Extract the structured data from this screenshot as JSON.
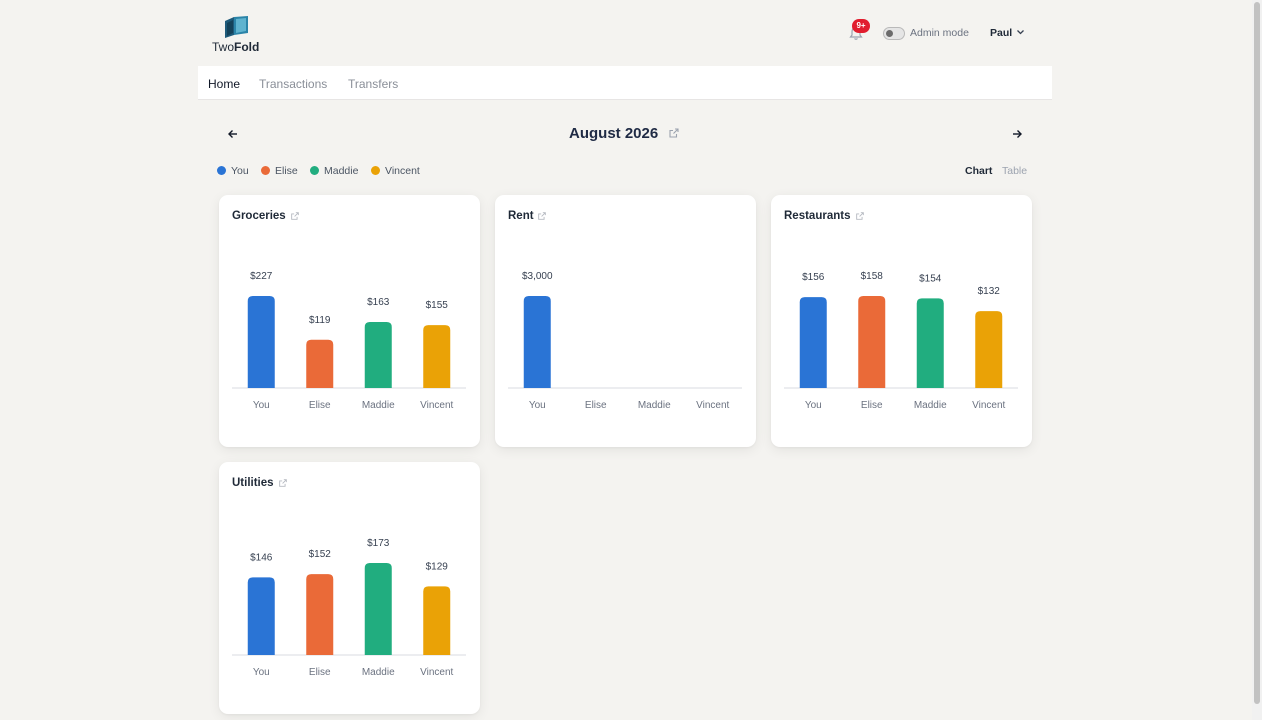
{
  "brand": {
    "name_prefix": "Two",
    "name_suffix": "Fold"
  },
  "header": {
    "notification_badge": "9+",
    "admin_mode_label": "Admin mode",
    "admin_mode_on": false,
    "user_name": "Paul"
  },
  "nav": {
    "tabs": [
      "Home",
      "Transactions",
      "Transfers"
    ],
    "active": "Home"
  },
  "period": {
    "label": "August 2026"
  },
  "legend": [
    {
      "name": "You",
      "color": "#2a74d5"
    },
    {
      "name": "Elise",
      "color": "#ea6a38"
    },
    {
      "name": "Maddie",
      "color": "#21ad7f"
    },
    {
      "name": "Vincent",
      "color": "#eaa206"
    }
  ],
  "view": {
    "options": [
      "Chart",
      "Table"
    ],
    "active": "Chart"
  },
  "chart_data": [
    {
      "type": "bar",
      "title": "Groceries",
      "categories": [
        "You",
        "Elise",
        "Maddie",
        "Vincent"
      ],
      "values": [
        227,
        119,
        163,
        155
      ],
      "labels": [
        "$227",
        "$119",
        "$163",
        "$155"
      ]
    },
    {
      "type": "bar",
      "title": "Rent",
      "categories": [
        "You",
        "Elise",
        "Maddie",
        "Vincent"
      ],
      "values": [
        3000,
        0,
        0,
        0
      ],
      "labels": [
        "$3,000",
        "",
        "",
        ""
      ]
    },
    {
      "type": "bar",
      "title": "Restaurants",
      "categories": [
        "You",
        "Elise",
        "Maddie",
        "Vincent"
      ],
      "values": [
        156,
        158,
        154,
        132
      ],
      "labels": [
        "$156",
        "$158",
        "$154",
        "$132"
      ]
    },
    {
      "type": "bar",
      "title": "Utilities",
      "categories": [
        "You",
        "Elise",
        "Maddie",
        "Vincent"
      ],
      "values": [
        146,
        152,
        173,
        129
      ],
      "labels": [
        "$146",
        "$152",
        "$173",
        "$129"
      ]
    }
  ]
}
